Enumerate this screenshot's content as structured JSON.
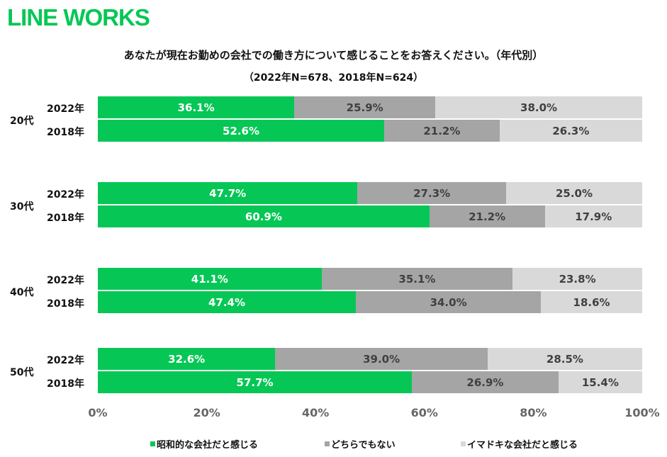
{
  "logo": "LINE WORKS",
  "title": "あなたが現在お勤めの会社での働き方について感じることをお答えください。（年代別）",
  "subtitle": "（2022年N=678、2018年N=624）",
  "chart_data": {
    "type": "bar",
    "orientation": "horizontal-stacked-100",
    "xlim": [
      0,
      100
    ],
    "x_ticks": [
      "0%",
      "20%",
      "40%",
      "60%",
      "80%",
      "100%"
    ],
    "series": [
      {
        "name": "昭和的な会社だと感じる",
        "color": "#06C755"
      },
      {
        "name": "どちらでもない",
        "color": "#A5A5A5"
      },
      {
        "name": "イマドキな会社だと感じる",
        "color": "#D9D9D9"
      }
    ],
    "groups": [
      {
        "label": "20代",
        "rows": [
          {
            "year": "2022年",
            "values": [
              36.1,
              25.9,
              38.0
            ]
          },
          {
            "year": "2018年",
            "values": [
              52.6,
              21.2,
              26.3
            ]
          }
        ]
      },
      {
        "label": "30代",
        "rows": [
          {
            "year": "2022年",
            "values": [
              47.7,
              27.3,
              25.0
            ]
          },
          {
            "year": "2018年",
            "values": [
              60.9,
              21.2,
              17.9
            ]
          }
        ]
      },
      {
        "label": "40代",
        "rows": [
          {
            "year": "2022年",
            "values": [
              41.1,
              35.1,
              23.8
            ]
          },
          {
            "year": "2018年",
            "values": [
              47.4,
              34.0,
              18.6
            ]
          }
        ]
      },
      {
        "label": "50代",
        "rows": [
          {
            "year": "2022年",
            "values": [
              32.6,
              39.0,
              28.5
            ]
          },
          {
            "year": "2018年",
            "values": [
              57.7,
              26.9,
              15.4
            ]
          }
        ]
      }
    ],
    "legend_position": "bottom"
  }
}
